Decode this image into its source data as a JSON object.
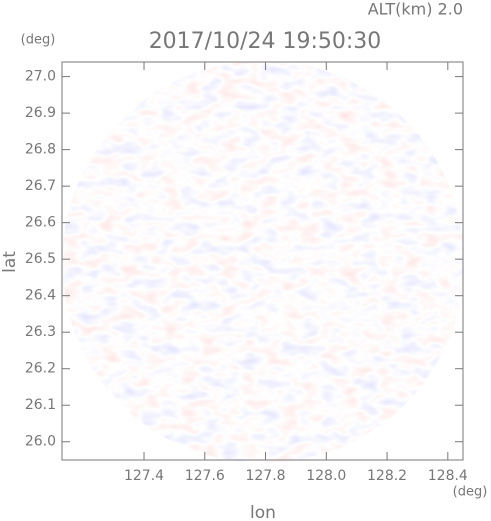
{
  "chart_data": {
    "type": "ppi",
    "title": "2017/10/24 19:50:30",
    "subtitle": "ALT(km) 2.0",
    "x_label": "lon",
    "y_label": "lat",
    "x_unit": "(deg)",
    "y_unit": "(deg)",
    "xlim": [
      127.13,
      128.45
    ],
    "ylim": [
      25.95,
      27.04
    ],
    "xticks": [
      127.4,
      127.6,
      127.8,
      {
        "value": 128,
        "label": "128.0"
      },
      128.2,
      128.4
    ],
    "yticks": [
      {
        "value": 26,
        "label": "26.0"
      },
      26.1,
      26.2,
      26.3,
      26.4,
      26.5,
      26.6,
      26.7,
      26.8,
      26.9,
      {
        "value": 27,
        "label": "27.0"
      }
    ]
  }
}
